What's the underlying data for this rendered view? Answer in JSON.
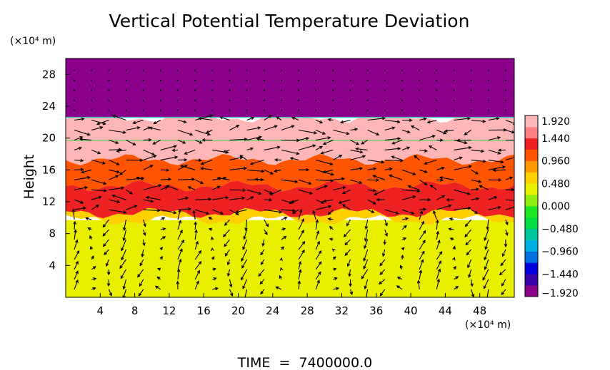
{
  "chart_data": {
    "type": "heatmap",
    "title": "Vertical Potential Temperature Deviation",
    "ylabel": "Height",
    "x_unit": "(×10⁴ m)",
    "y_unit": "(×10⁴ m)",
    "footer": "TIME  =  7400000.0",
    "xlim": [
      0,
      52
    ],
    "ylim": [
      0,
      30
    ],
    "x_ticks": [
      4,
      8,
      12,
      16,
      20,
      24,
      28,
      32,
      36,
      40,
      44,
      48
    ],
    "x_tick_labels": [
      "4",
      "8",
      "12",
      "16",
      "20",
      "24",
      "28",
      "32",
      "36",
      "40",
      "44",
      "48"
    ],
    "y_ticks": [
      4,
      8,
      12,
      16,
      20,
      24,
      28
    ],
    "y_tick_labels": [
      "4",
      "8",
      "12",
      "16",
      "20",
      "24",
      "28"
    ],
    "colorbar": {
      "range": [
        -1.92,
        1.92
      ],
      "tick_labels": [
        "1.920",
        "1.440",
        "0.960",
        "0.480",
        "0.000",
        "−0.480",
        "−0.960",
        "−1.440",
        "−1.920"
      ],
      "tick_values": [
        1.92,
        1.44,
        0.96,
        0.48,
        0.0,
        -0.48,
        -0.96,
        -1.44,
        -1.92
      ],
      "colors": [
        "#8b008b",
        "#3a00a8",
        "#0000dd",
        "#0070e0",
        "#00b0e0",
        "#00c8a0",
        "#00dd40",
        "#20e820",
        "#90ee10",
        "#e8f000",
        "#ffd000",
        "#ff9900",
        "#ff5500",
        "#ee2222",
        "#ff8080",
        "#ffb6b6"
      ]
    },
    "bands": [
      {
        "y_from": 0.0,
        "y_to": 9.7,
        "value": 0.25
      },
      {
        "y_from": 9.7,
        "y_to": 10.6,
        "value": 0.6
      },
      {
        "y_from": 10.6,
        "y_to": 14.0,
        "value": 1.2
      },
      {
        "y_from": 14.0,
        "y_to": 17.3,
        "value": 1.0
      },
      {
        "y_from": 17.3,
        "y_to": 19.6,
        "value": 1.7
      },
      {
        "y_from": 19.6,
        "y_to": 22.6,
        "value": 1.92
      },
      {
        "y_from": 22.6,
        "y_to": 30.0,
        "value": -1.92
      }
    ],
    "vector_grid": {
      "x_start": 1.0,
      "x_step": 2.0,
      "x_count": 26,
      "y_start": 1.0,
      "y_step": 1.25,
      "y_count": 23
    }
  }
}
